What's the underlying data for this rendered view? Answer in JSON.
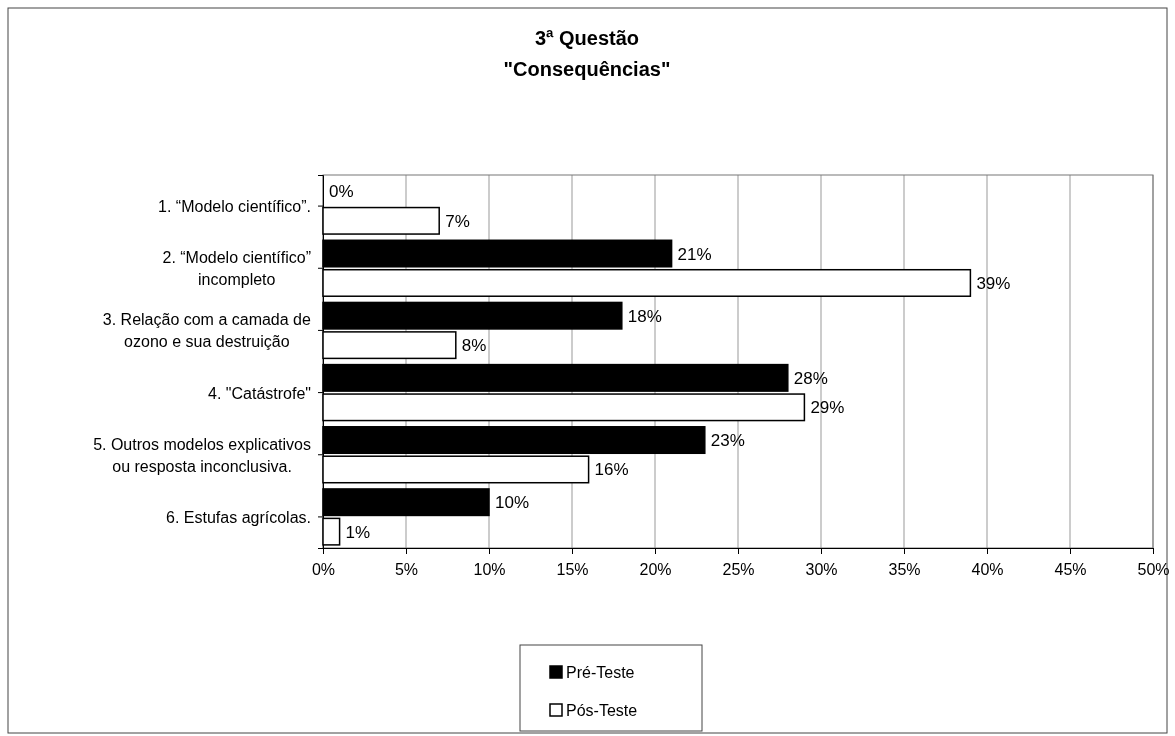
{
  "chart_data": {
    "type": "bar",
    "orientation": "horizontal",
    "title": "3ª Questão",
    "subtitle": "\"Consequências\"",
    "categories": [
      "1. “Modelo científico”.",
      "2. “Modelo científico” incompleto",
      "3. Relação com a camada de ozono e sua destruição",
      "4. \"Catástrofe\"",
      "5. Outros modelos explicativos ou resposta inconclusiva.",
      "6. Estufas agrícolas."
    ],
    "series": [
      {
        "name": "Pré-Teste",
        "color": "#000000",
        "values": [
          0,
          21,
          18,
          28,
          23,
          10
        ],
        "value_labels": [
          "0%",
          "21%",
          "18%",
          "28%",
          "23%",
          "10%"
        ]
      },
      {
        "name": "Pós-Teste",
        "color": "#ffffff",
        "values": [
          7,
          39,
          8,
          29,
          16,
          1
        ],
        "value_labels": [
          "7%",
          "39%",
          "8%",
          "29%",
          "16%",
          "1%"
        ]
      }
    ],
    "xlim": [
      0,
      50
    ],
    "xticks": [
      {
        "value": 0,
        "label": "0%"
      },
      {
        "value": 5,
        "label": "5%"
      },
      {
        "value": 10,
        "label": "10%"
      },
      {
        "value": 15,
        "label": "15%"
      },
      {
        "value": 20,
        "label": "20%"
      },
      {
        "value": 25,
        "label": "25%"
      },
      {
        "value": 30,
        "label": "30%"
      },
      {
        "value": 35,
        "label": "35%"
      },
      {
        "value": 40,
        "label": "40%"
      },
      {
        "value": 45,
        "label": "45%"
      },
      {
        "value": 50,
        "label": "50%"
      }
    ],
    "grid": "x",
    "legend": "bottom"
  }
}
